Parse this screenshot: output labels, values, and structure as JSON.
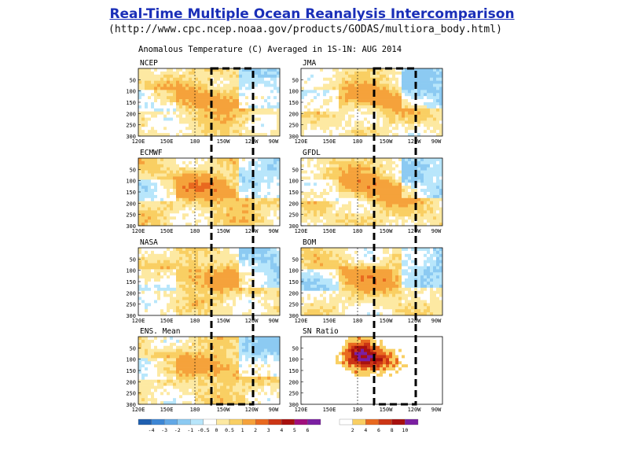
{
  "page": {
    "title": "Real-Time Multiple Ocean Reanalysis Intercomparison",
    "url": "(http://www.cpc.ncep.noaa.gov/products/GODAS/multiora_body.html)"
  },
  "chart_data": {
    "type": "heatmap",
    "title": "Anomalous Temperature (C) Averaged in 1S-1N: AUG 2014",
    "x_ticks": [
      "120E",
      "150E",
      "180",
      "150W",
      "120W",
      "90W"
    ],
    "x_ticks_sn": [
      "120E",
      "150E",
      "180",
      "150W",
      "120W",
      "90W"
    ],
    "y_ticks": [
      "50",
      "100",
      "150",
      "200",
      "250",
      "300"
    ],
    "panels": [
      {
        "name": "NCEP",
        "kind": "anom",
        "seed": 3,
        "bias": 0.25
      },
      {
        "name": "JMA",
        "kind": "anom",
        "seed": 7,
        "bias": 0.15
      },
      {
        "name": "ECMWF",
        "kind": "anom",
        "seed": 11,
        "bias": 0.35
      },
      {
        "name": "GFDL",
        "kind": "anom",
        "seed": 17,
        "bias": 0.3
      },
      {
        "name": "NASA",
        "kind": "anom",
        "seed": 23,
        "bias": 0.2
      },
      {
        "name": "BOM",
        "kind": "anom",
        "seed": 29,
        "bias": 0.15
      },
      {
        "name": "ENS. Mean",
        "kind": "anom",
        "seed": 31,
        "bias": 0.25
      },
      {
        "name": "SN Ratio",
        "kind": "sn",
        "seed": 37,
        "bias": 0
      }
    ],
    "colorbar_anom": {
      "labels": [
        "-4",
        "-3",
        "-2",
        "-1",
        "-0.5",
        "0",
        "0.5",
        "1",
        "2",
        "3",
        "4",
        "5",
        "6"
      ],
      "colors": [
        "#1f5fb0",
        "#3d86d4",
        "#62a8e6",
        "#8ccaf2",
        "#b8e6fb",
        "#ffffff",
        "#fde9a2",
        "#f9cf63",
        "#f5a23b",
        "#e9691f",
        "#cc3515",
        "#a8100e",
        "#a10f7d",
        "#7b1fa2"
      ]
    },
    "colorbar_sn": {
      "labels": [
        "2",
        "4",
        "6",
        "8",
        "10"
      ],
      "colors": [
        "#ffffff",
        "#f9cf63",
        "#e9691f",
        "#cc3515",
        "#a8100e",
        "#7b1fa2"
      ]
    }
  }
}
